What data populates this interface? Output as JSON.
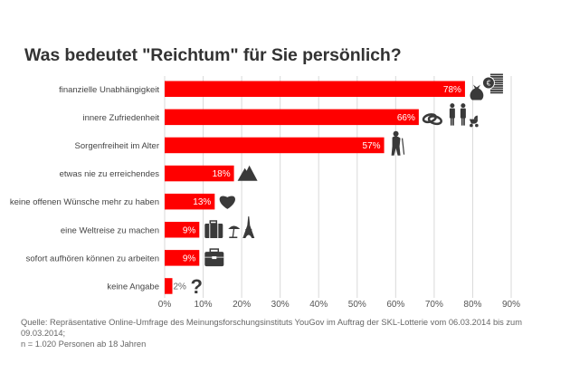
{
  "title": "Was bedeutet \"Reichtum\" für Sie persönlich?",
  "footnote": {
    "line1": "Quelle: Repräsentative Online-Umfrage des Meinungsforschungsinstituts YouGov im Auftrag der SKL-Lotterie vom 06.03.2014 bis zum 09.03.2014;",
    "line2": "n = 1.020 Personen ab 18 Jahren"
  },
  "colors": {
    "bar": "#ff0000",
    "icon": "#3a3a3a",
    "grid": "#d9d9d9",
    "label": "#444444",
    "value_label": "#ffffff"
  },
  "chart_data": {
    "type": "bar",
    "orientation": "horizontal",
    "title": "Was bedeutet \"Reichtum\" für Sie persönlich?",
    "xlabel": "",
    "ylabel": "",
    "xlim": [
      0,
      90
    ],
    "grid": true,
    "x_ticks": [
      "0%",
      "10%",
      "20%",
      "30%",
      "40%",
      "50%",
      "60%",
      "70%",
      "80%",
      "90%"
    ],
    "categories": [
      "finanzielle Unabhängigkeit",
      "innere Zufriedenheit",
      "Sorgenfreiheit im Alter",
      "etwas nie zu erreichendes",
      "keine offenen Wünsche mehr zu haben",
      "eine Weltreise zu machen",
      "sofort aufhören können zu arbeiten",
      "keine Angabe"
    ],
    "values": [
      78,
      66,
      57,
      18,
      13,
      9,
      9,
      2
    ],
    "value_labels": [
      "78%",
      "66%",
      "57%",
      "18%",
      "13%",
      "9%",
      "9%",
      "2%"
    ],
    "icons": [
      [
        "money-bag-icon",
        "euro-coins-stack-icon"
      ],
      [
        "wedding-rings-icon",
        "couple-icon",
        "baby-stroller-icon"
      ],
      [
        "elderly-person-with-cane-icon"
      ],
      [
        "mountain-icon"
      ],
      [
        "heart-icon"
      ],
      [
        "suitcase-icon",
        "beach-umbrella-icon",
        "eiffel-tower-icon"
      ],
      [
        "briefcase-icon"
      ],
      [
        "question-mark-icon"
      ]
    ]
  }
}
